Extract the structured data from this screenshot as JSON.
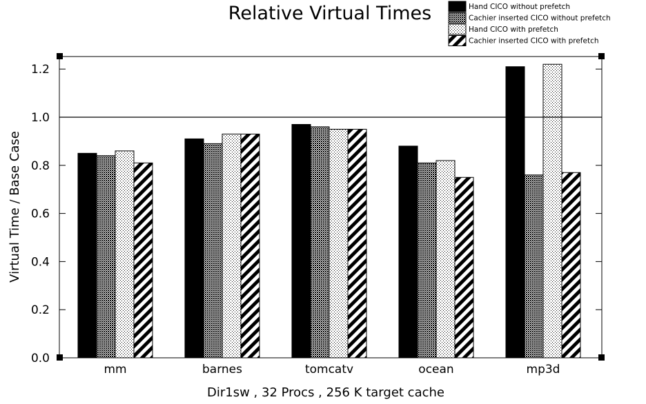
{
  "chart_data": {
    "type": "bar",
    "title": "Relative Virtual Times",
    "xlabel": "Dir1sw , 32 Procs , 256 K target cache",
    "ylabel": "Virtual Time / Base Case",
    "categories": [
      "mm",
      "barnes",
      "tomcatv",
      "ocean",
      "mp3d"
    ],
    "series": [
      {
        "name": "Hand CICO without prefetch",
        "values": [
          0.85,
          0.91,
          0.97,
          0.88,
          1.21
        ],
        "pattern": "solid-black"
      },
      {
        "name": "Cachier inserted CICO without prefetch",
        "values": [
          0.84,
          0.89,
          0.96,
          0.81,
          0.76
        ],
        "pattern": "dense-gray-dots"
      },
      {
        "name": "Hand CICO with prefetch",
        "values": [
          0.86,
          0.93,
          0.95,
          0.82,
          1.22
        ],
        "pattern": "sparse-dots"
      },
      {
        "name": "Cachier inserted CICO with prefetch",
        "values": [
          0.81,
          0.93,
          0.95,
          0.75,
          0.77
        ],
        "pattern": "diagonal-stripes"
      }
    ],
    "yticks": [
      "0.0",
      "0.2",
      "0.4",
      "0.6",
      "0.8",
      "1.0",
      "1.2"
    ],
    "ylim": [
      0,
      1.3
    ],
    "reference_line": 1.0,
    "grid": false,
    "legend_position": "top-right"
  }
}
